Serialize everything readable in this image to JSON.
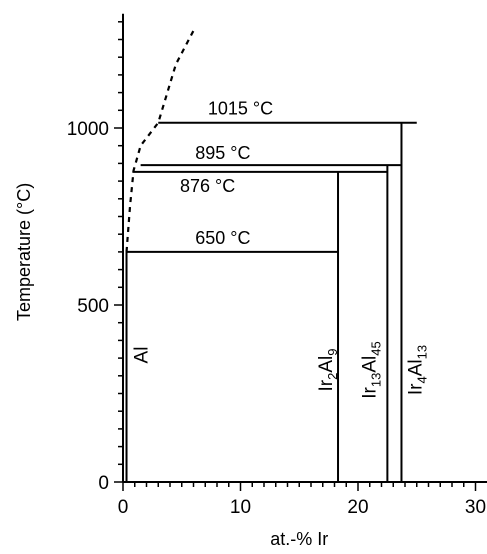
{
  "axes": {
    "x": {
      "label": "at.-% Ir",
      "range": [
        0,
        31
      ],
      "major_ticks": [
        0,
        10,
        20,
        30
      ],
      "tick_labels": [
        "0",
        "10",
        "20",
        "30"
      ]
    },
    "y": {
      "label": "Temperature (°C)",
      "range": [
        0,
        1300
      ],
      "major_ticks": [
        0,
        500,
        1000
      ],
      "tick_labels": [
        "0",
        "500",
        "1000"
      ]
    }
  },
  "isotherms": [
    {
      "label": "1015 °C",
      "temperature": 1015,
      "x_from": 3,
      "x_to": 25
    },
    {
      "label": "895 °C",
      "temperature": 895,
      "x_from": 1.5,
      "x_to": 23.7
    },
    {
      "label": "876 °C",
      "temperature": 876,
      "x_from": 0.8,
      "x_to": 22.5
    },
    {
      "label": "650 °C",
      "temperature": 650,
      "x_from": 0.3,
      "x_to": 18.3
    }
  ],
  "phases": [
    {
      "id": "al",
      "name": "Al",
      "x": 0.3,
      "t_top": 650
    },
    {
      "id": "ir2al9",
      "base": "Ir",
      "sub1": "2",
      "base2": "Al",
      "sub2": "9",
      "x": 18.3,
      "t_top": 876
    },
    {
      "id": "ir13al45",
      "base": "Ir",
      "sub1": "13",
      "base2": "Al",
      "sub2": "45",
      "x": 22.5,
      "t_top": 895
    },
    {
      "id": "ir4al13",
      "base": "Ir",
      "sub1": "4",
      "base2": "Al",
      "sub2": "13",
      "x": 23.7,
      "t_top": 1015
    }
  ],
  "liquidus": [
    [
      0.3,
      650
    ],
    [
      0.6,
      780
    ],
    [
      0.9,
      880
    ],
    [
      1.5,
      950
    ],
    [
      3,
      1015
    ],
    [
      4.5,
      1180
    ],
    [
      6,
      1275
    ]
  ]
}
